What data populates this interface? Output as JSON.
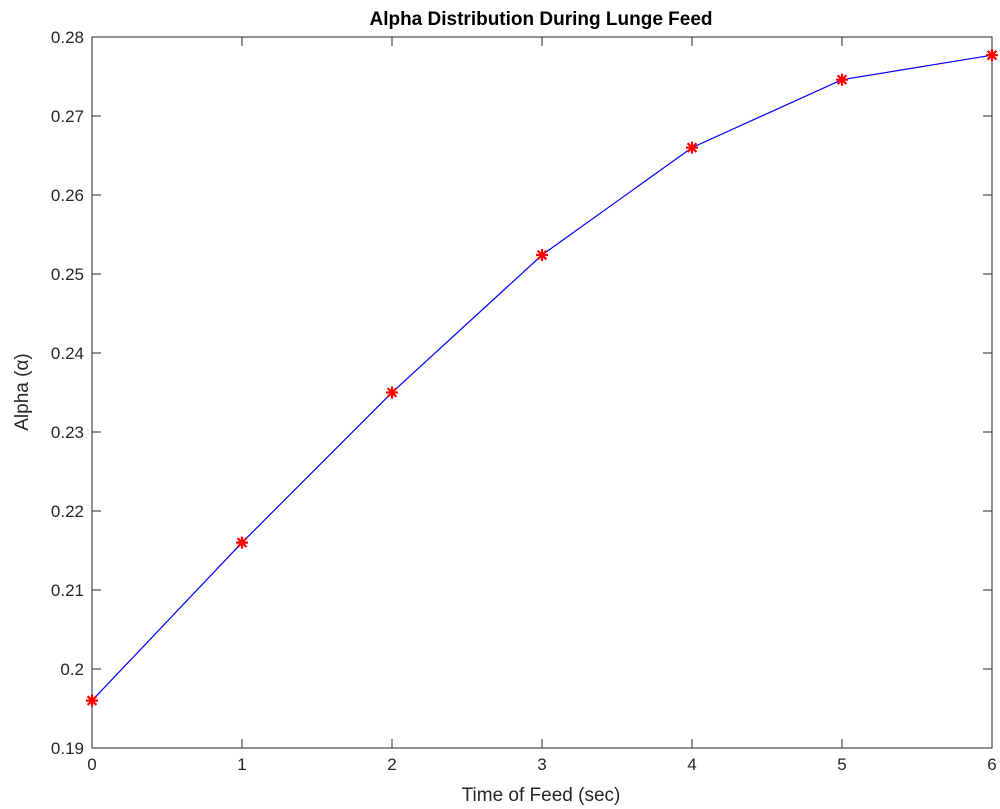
{
  "chart_data": {
    "type": "line",
    "title": "Alpha Distribution During Lunge Feed",
    "xlabel": "Time of Feed (sec)",
    "ylabel": "Alpha (α)",
    "xlim": [
      0,
      6
    ],
    "ylim": [
      0.19,
      0.28
    ],
    "xticks": [
      "0",
      "1",
      "2",
      "3",
      "4",
      "5",
      "6"
    ],
    "yticks": [
      "0.19",
      "0.2",
      "0.21",
      "0.22",
      "0.23",
      "0.24",
      "0.25",
      "0.26",
      "0.27",
      "0.28"
    ],
    "grid": false,
    "series": [
      {
        "x": [
          0,
          1,
          2,
          3,
          4,
          5,
          6
        ],
        "values": [
          0.196,
          0.216,
          0.235,
          0.2524,
          0.266,
          0.2746,
          0.2777
        ],
        "line_color": "#0000ff",
        "marker": "asterisk",
        "marker_color": "#ff0000"
      }
    ]
  }
}
